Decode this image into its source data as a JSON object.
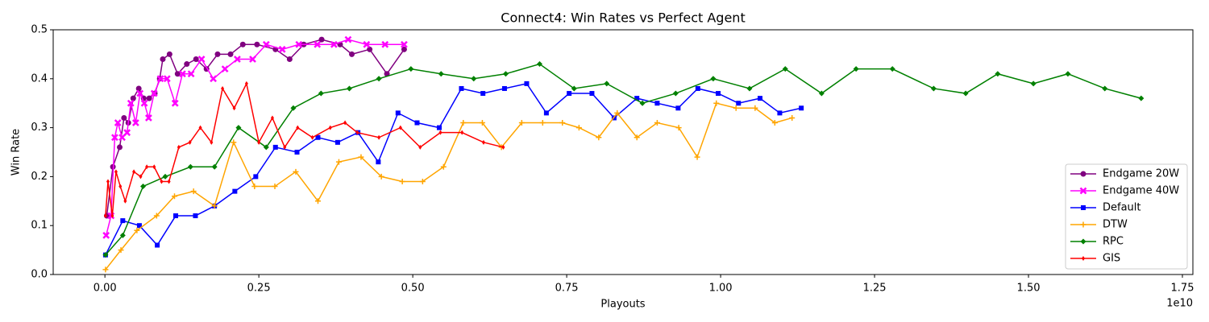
{
  "chart_data": {
    "type": "line",
    "title": "Connect4: Win Rates vs Perfect Agent",
    "xlabel": "Playouts",
    "ylabel": "Win Rate",
    "x_offset_label": "1e10",
    "xlim": [
      -0.084,
      1.767
    ],
    "ylim": [
      0,
      0.5
    ],
    "xticks": [
      {
        "value": 0,
        "label": "0.00"
      },
      {
        "value": 0.25,
        "label": "0.25"
      },
      {
        "value": 0.5,
        "label": "0.50"
      },
      {
        "value": 0.75,
        "label": "0.75"
      },
      {
        "value": 1,
        "label": "1.00"
      },
      {
        "value": 1.25,
        "label": "1.25"
      },
      {
        "value": 1.5,
        "label": "1.50"
      },
      {
        "value": 1.75,
        "label": "1.75"
      }
    ],
    "yticks": [
      {
        "value": 0,
        "label": "0.0"
      },
      {
        "value": 0.1,
        "label": "0.1"
      },
      {
        "value": 0.2,
        "label": "0.2"
      },
      {
        "value": 0.3,
        "label": "0.3"
      },
      {
        "value": 0.4,
        "label": "0.4"
      },
      {
        "value": 0.5,
        "label": "0.5"
      }
    ],
    "grid": false,
    "legend": "lower right",
    "series": [
      {
        "name": "Endgame 20W",
        "color": "#800080",
        "marker": "circle",
        "x": [
          0.003,
          0.013,
          0.024,
          0.031,
          0.038,
          0.046,
          0.055,
          0.063,
          0.072,
          0.081,
          0.089,
          0.094,
          0.105,
          0.118,
          0.133,
          0.148,
          0.165,
          0.183,
          0.204,
          0.224,
          0.247,
          0.277,
          0.3,
          0.323,
          0.352,
          0.382,
          0.401,
          0.43,
          0.458,
          0.486
        ],
        "values": [
          0.12,
          0.22,
          0.26,
          0.32,
          0.31,
          0.36,
          0.38,
          0.36,
          0.36,
          0.37,
          0.4,
          0.44,
          0.45,
          0.41,
          0.43,
          0.44,
          0.42,
          0.45,
          0.45,
          0.47,
          0.47,
          0.46,
          0.44,
          0.47,
          0.48,
          0.47,
          0.45,
          0.46,
          0.41,
          0.46
        ]
      },
      {
        "name": "Endgame 40W",
        "color": "#ff00ff",
        "marker": "x",
        "x": [
          0.002,
          0.01,
          0.016,
          0.021,
          0.028,
          0.036,
          0.042,
          0.05,
          0.057,
          0.064,
          0.071,
          0.08,
          0.09,
          0.101,
          0.114,
          0.126,
          0.14,
          0.157,
          0.176,
          0.195,
          0.215,
          0.24,
          0.262,
          0.288,
          0.315,
          0.345,
          0.372,
          0.395,
          0.425,
          0.455,
          0.486
        ],
        "values": [
          0.08,
          0.12,
          0.28,
          0.31,
          0.28,
          0.29,
          0.35,
          0.31,
          0.37,
          0.35,
          0.32,
          0.37,
          0.4,
          0.4,
          0.35,
          0.41,
          0.41,
          0.44,
          0.4,
          0.42,
          0.44,
          0.44,
          0.47,
          0.46,
          0.47,
          0.47,
          0.47,
          0.48,
          0.47,
          0.47,
          0.47
        ]
      },
      {
        "name": "Default",
        "color": "#0000ff",
        "marker": "square",
        "x": [
          0.001,
          0.029,
          0.056,
          0.085,
          0.115,
          0.147,
          0.178,
          0.211,
          0.245,
          0.277,
          0.312,
          0.346,
          0.378,
          0.411,
          0.444,
          0.476,
          0.507,
          0.543,
          0.579,
          0.614,
          0.649,
          0.685,
          0.717,
          0.754,
          0.791,
          0.827,
          0.864,
          0.897,
          0.931,
          0.963,
          0.996,
          1.029,
          1.064,
          1.096,
          1.131
        ],
        "values": [
          0.04,
          0.11,
          0.1,
          0.06,
          0.12,
          0.12,
          0.14,
          0.17,
          0.2,
          0.26,
          0.25,
          0.28,
          0.27,
          0.29,
          0.23,
          0.33,
          0.31,
          0.3,
          0.38,
          0.37,
          0.38,
          0.39,
          0.33,
          0.37,
          0.37,
          0.32,
          0.36,
          0.35,
          0.34,
          0.38,
          0.37,
          0.35,
          0.36,
          0.33,
          0.34
        ]
      },
      {
        "name": "DTW",
        "color": "#ffa500",
        "marker": "plus",
        "x": [
          0.001,
          0.026,
          0.052,
          0.084,
          0.113,
          0.144,
          0.178,
          0.209,
          0.243,
          0.276,
          0.31,
          0.346,
          0.38,
          0.416,
          0.449,
          0.483,
          0.516,
          0.55,
          0.582,
          0.613,
          0.644,
          0.677,
          0.711,
          0.743,
          0.77,
          0.802,
          0.832,
          0.864,
          0.897,
          0.932,
          0.962,
          0.993,
          1.025,
          1.056,
          1.088,
          1.116
        ],
        "values": [
          0.01,
          0.05,
          0.09,
          0.12,
          0.16,
          0.17,
          0.14,
          0.27,
          0.18,
          0.18,
          0.21,
          0.15,
          0.23,
          0.24,
          0.2,
          0.19,
          0.19,
          0.22,
          0.31,
          0.31,
          0.26,
          0.31,
          0.31,
          0.31,
          0.3,
          0.28,
          0.33,
          0.28,
          0.31,
          0.3,
          0.24,
          0.35,
          0.34,
          0.34,
          0.31,
          0.32
        ]
      },
      {
        "name": "RPC",
        "color": "#008000",
        "marker": "diamond",
        "x": [
          0.001,
          0.029,
          0.062,
          0.098,
          0.139,
          0.178,
          0.217,
          0.262,
          0.306,
          0.351,
          0.397,
          0.445,
          0.497,
          0.546,
          0.599,
          0.651,
          0.706,
          0.762,
          0.815,
          0.873,
          0.927,
          0.988,
          1.047,
          1.105,
          1.164,
          1.22,
          1.279,
          1.346,
          1.398,
          1.45,
          1.508,
          1.564,
          1.624,
          1.683
        ],
        "values": [
          0.04,
          0.08,
          0.18,
          0.2,
          0.22,
          0.22,
          0.3,
          0.26,
          0.34,
          0.37,
          0.38,
          0.4,
          0.42,
          0.41,
          0.4,
          0.41,
          0.43,
          0.38,
          0.39,
          0.35,
          0.37,
          0.4,
          0.38,
          0.42,
          0.37,
          0.42,
          0.42,
          0.38,
          0.37,
          0.41,
          0.39,
          0.41,
          0.38,
          0.36
        ]
      },
      {
        "name": "GIS",
        "color": "#ff0000",
        "marker": "thin_diamond",
        "x": [
          0.001,
          0.005,
          0.012,
          0.018,
          0.025,
          0.033,
          0.047,
          0.058,
          0.068,
          0.08,
          0.092,
          0.104,
          0.12,
          0.138,
          0.155,
          0.173,
          0.191,
          0.21,
          0.23,
          0.25,
          0.272,
          0.292,
          0.313,
          0.337,
          0.366,
          0.39,
          0.41,
          0.445,
          0.48,
          0.512,
          0.545,
          0.58,
          0.615,
          0.647
        ],
        "values": [
          0.12,
          0.19,
          0.12,
          0.21,
          0.18,
          0.15,
          0.21,
          0.2,
          0.22,
          0.22,
          0.19,
          0.19,
          0.26,
          0.27,
          0.3,
          0.27,
          0.38,
          0.34,
          0.39,
          0.27,
          0.32,
          0.26,
          0.3,
          0.28,
          0.3,
          0.31,
          0.29,
          0.28,
          0.3,
          0.26,
          0.29,
          0.29,
          0.27,
          0.26
        ]
      }
    ]
  }
}
